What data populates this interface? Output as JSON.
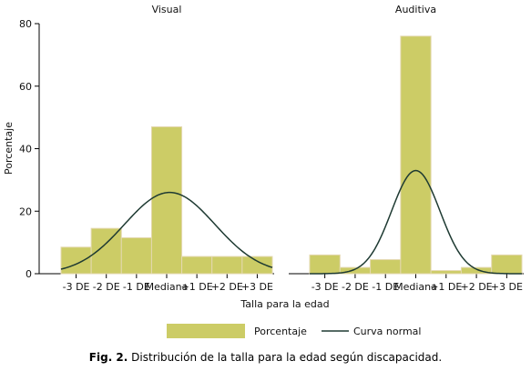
{
  "chart_data": {
    "type": "bar",
    "xlabel": "Talla para la edad",
    "ylabel": "Porcentaje",
    "ylim": [
      0,
      80
    ],
    "yticks": [
      0,
      20,
      40,
      60,
      80
    ],
    "categories": [
      "-3 DE",
      "-2 DE",
      "-1 DE",
      "Mediana",
      "+1 DE",
      "+2 DE",
      "+3 DE"
    ],
    "legend": {
      "position": "bottom",
      "bar_label": "Porcentaje",
      "line_label": "Curva normal"
    },
    "colors": {
      "bar": "#cccc66",
      "bar_edge": "#e4d8b0",
      "curve": "#1e3a32"
    },
    "panels": [
      {
        "title": "Visual",
        "values": [
          8.5,
          14.5,
          11.5,
          47,
          5.5,
          5.5,
          5.5
        ],
        "normal_curve": {
          "peak": 26,
          "center_bar": 3.1,
          "sd_bars": 1.5
        }
      },
      {
        "title": "Auditiva",
        "values": [
          6,
          2,
          4.5,
          76,
          1,
          2,
          6
        ],
        "normal_curve": {
          "peak": 33,
          "center_bar": 3.0,
          "sd_bars": 0.8
        }
      }
    ]
  },
  "caption": {
    "label": "Fig. 2.",
    "text": "Distribución de la talla para la edad según discapacidad."
  }
}
